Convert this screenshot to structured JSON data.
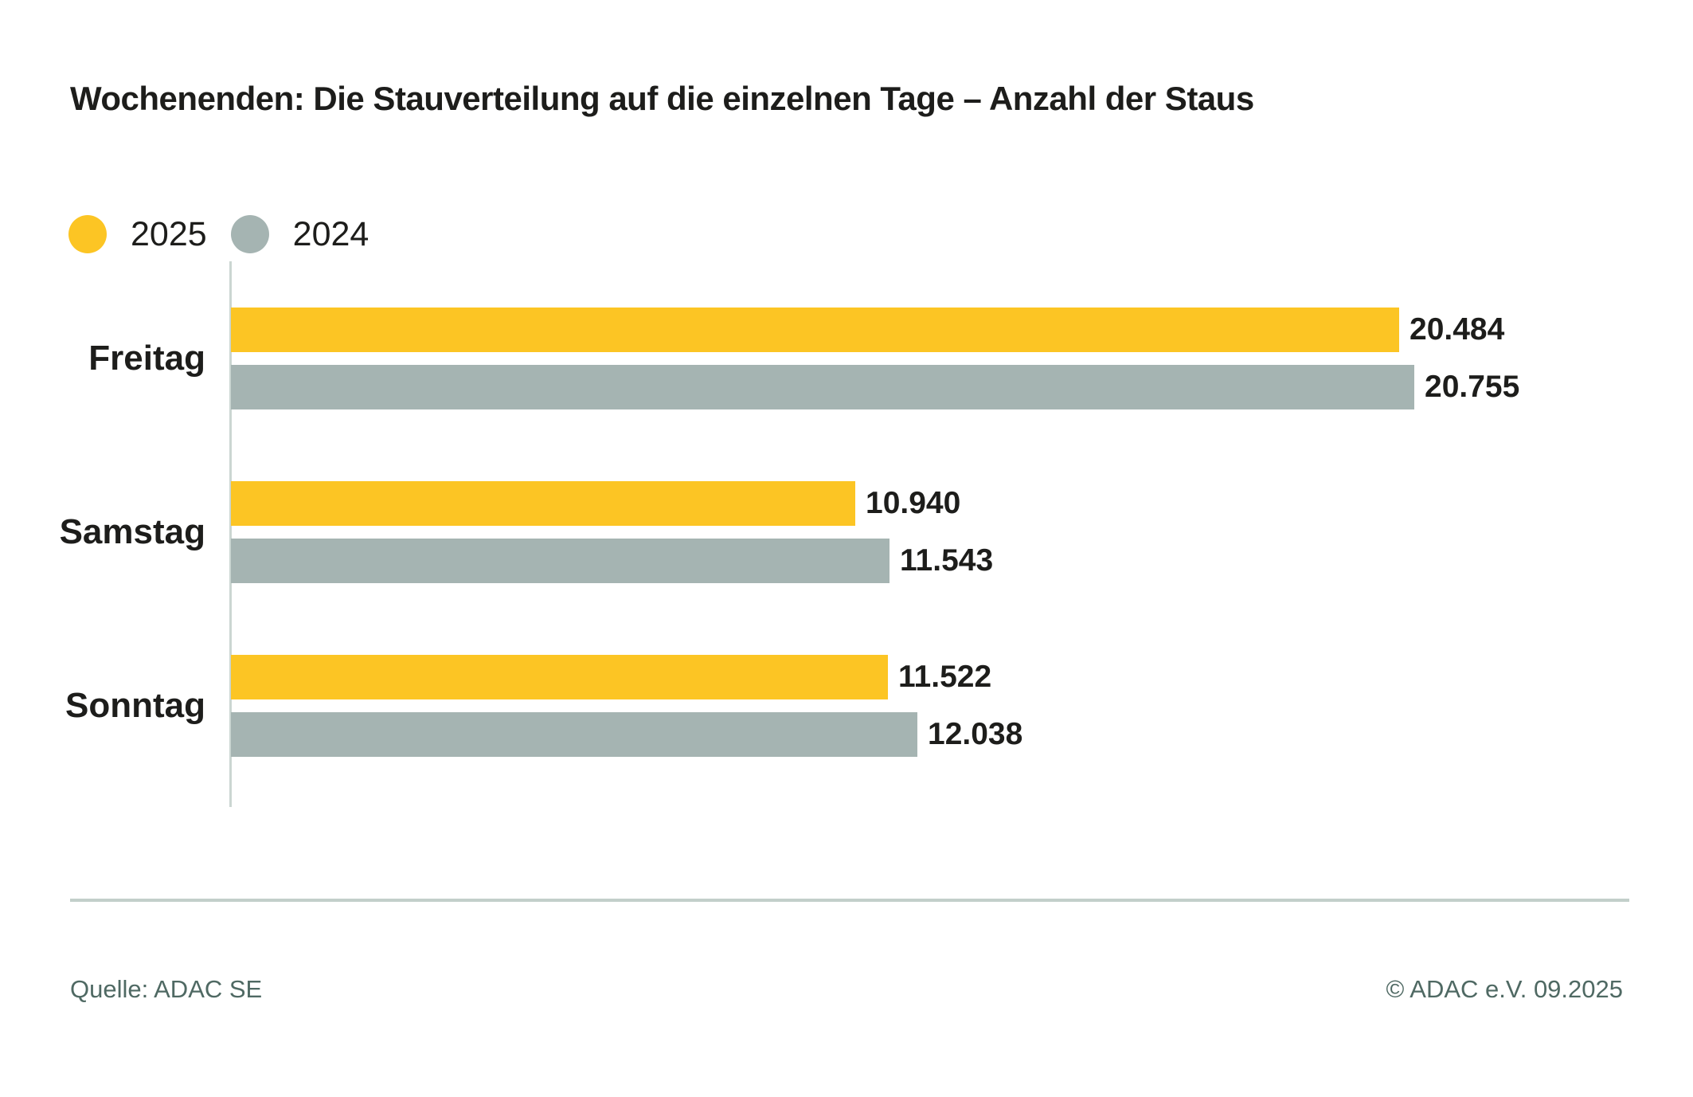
{
  "title": "Wochenenden: Die Stauverteilung auf die einzelnen Tage – Anzahl der Staus",
  "legend": {
    "items": [
      {
        "label": "2025",
        "color": "#fcc524"
      },
      {
        "label": "2024",
        "color": "#a5b4b2"
      }
    ]
  },
  "footer": {
    "source": "Quelle: ADAC SE",
    "copyright": "© ADAC e.V. 09.2025"
  },
  "colors": {
    "series_2025": "#fcc524",
    "series_2024": "#a5b4b2",
    "axis_line": "#cbd6d2",
    "divider": "#c2cfca",
    "text": "#1d1d1b",
    "footer_text": "#4f6963"
  },
  "chart_data": {
    "type": "bar",
    "orientation": "horizontal",
    "title": "Wochenenden: Die Stauverteilung auf die einzelnen Tage – Anzahl der Staus",
    "categories": [
      "Freitag",
      "Samstag",
      "Sonntag"
    ],
    "series": [
      {
        "name": "2025",
        "color": "#fcc524",
        "values": [
          20484,
          10940,
          11522
        ],
        "labels": [
          "20.484",
          "10.940",
          "11.522"
        ]
      },
      {
        "name": "2024",
        "color": "#a5b4b2",
        "values": [
          20755,
          11543,
          12038
        ],
        "labels": [
          "20.755",
          "11.543",
          "12.038"
        ]
      }
    ],
    "xlim": [
      0,
      24800
    ],
    "grid": false,
    "legend_position": "top-left",
    "value_labels": "end-of-bar"
  }
}
